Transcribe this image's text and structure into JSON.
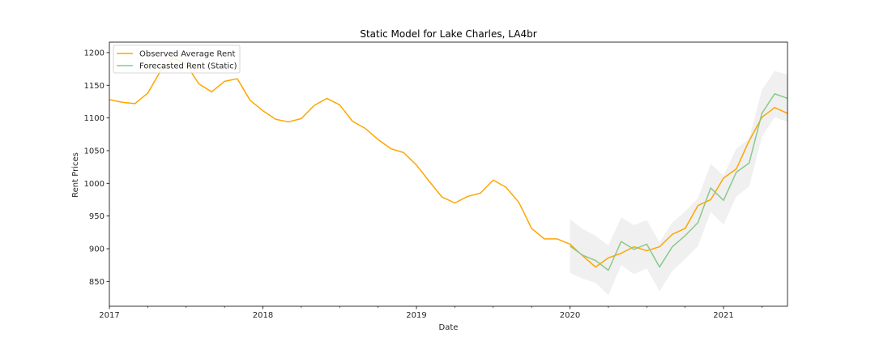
{
  "chart_data": {
    "type": "line",
    "title": "Static Model for Lake Charles, LA4br",
    "xlabel": "Date",
    "ylabel": "Rent Prices",
    "xlim": [
      "2017-01",
      "2021-06"
    ],
    "ylim": [
      812,
      1216
    ],
    "yticks": [
      850,
      900,
      950,
      1000,
      1050,
      1100,
      1150,
      1200
    ],
    "xticks": [
      {
        "date": "2017-01",
        "label": "2017"
      },
      {
        "date": "2018-01",
        "label": "2018"
      },
      {
        "date": "2019-01",
        "label": "2019"
      },
      {
        "date": "2020-01",
        "label": "2020"
      },
      {
        "date": "2021-01",
        "label": "2021"
      }
    ],
    "grid": false,
    "legend_position": "top-left",
    "series": [
      {
        "name": "Observed Average Rent",
        "color": "#FFA500",
        "x": [
          "2017-01",
          "2017-02",
          "2017-03",
          "2017-04",
          "2017-05",
          "2017-06",
          "2017-07",
          "2017-08",
          "2017-09",
          "2017-10",
          "2017-11",
          "2017-12",
          "2018-01",
          "2018-02",
          "2018-03",
          "2018-04",
          "2018-05",
          "2018-06",
          "2018-07",
          "2018-08",
          "2018-09",
          "2018-10",
          "2018-11",
          "2018-12",
          "2019-01",
          "2019-02",
          "2019-03",
          "2019-04",
          "2019-05",
          "2019-06",
          "2019-07",
          "2019-08",
          "2019-09",
          "2019-10",
          "2019-11",
          "2019-12",
          "2020-01",
          "2020-02",
          "2020-03",
          "2020-04",
          "2020-05",
          "2020-06",
          "2020-07",
          "2020-08",
          "2020-09",
          "2020-10",
          "2020-11",
          "2020-12",
          "2021-01",
          "2021-02",
          "2021-03",
          "2021-04",
          "2021-05",
          "2021-06"
        ],
        "values": [
          1128,
          1124,
          1122,
          1138,
          1172,
          1192,
          1182,
          1152,
          1140,
          1156,
          1160,
          1127,
          1111,
          1098,
          1094,
          1099,
          1119,
          1130,
          1120,
          1095,
          1084,
          1067,
          1053,
          1047,
          1028,
          1003,
          979,
          970,
          980,
          985,
          1005,
          994,
          971,
          931,
          915,
          915,
          907,
          889,
          872,
          886,
          893,
          903,
          897,
          903,
          922,
          931,
          966,
          975,
          1008,
          1022,
          1065,
          1101,
          1116,
          1107
        ]
      },
      {
        "name": "Forecasted Rent (Static)",
        "color": "#8CC88C",
        "x": [
          "2020-01",
          "2020-02",
          "2020-03",
          "2020-04",
          "2020-05",
          "2020-06",
          "2020-07",
          "2020-08",
          "2020-09",
          "2020-10",
          "2020-11",
          "2020-12",
          "2021-01",
          "2021-02",
          "2021-03",
          "2021-04",
          "2021-05",
          "2021-06"
        ],
        "values": [
          904,
          890,
          882,
          867,
          911,
          899,
          907,
          872,
          903,
          920,
          940,
          993,
          974,
          1017,
          1031,
          1107,
          1137,
          1130
        ],
        "lower": [
          863,
          854,
          848,
          829,
          875,
          861,
          870,
          835,
          866,
          884,
          904,
          956,
          937,
          980,
          995,
          1071,
          1101,
          1094
        ],
        "upper": [
          945,
          930,
          920,
          905,
          948,
          936,
          944,
          910,
          940,
          957,
          977,
          1030,
          1012,
          1053,
          1068,
          1143,
          1172,
          1166
        ]
      }
    ]
  }
}
